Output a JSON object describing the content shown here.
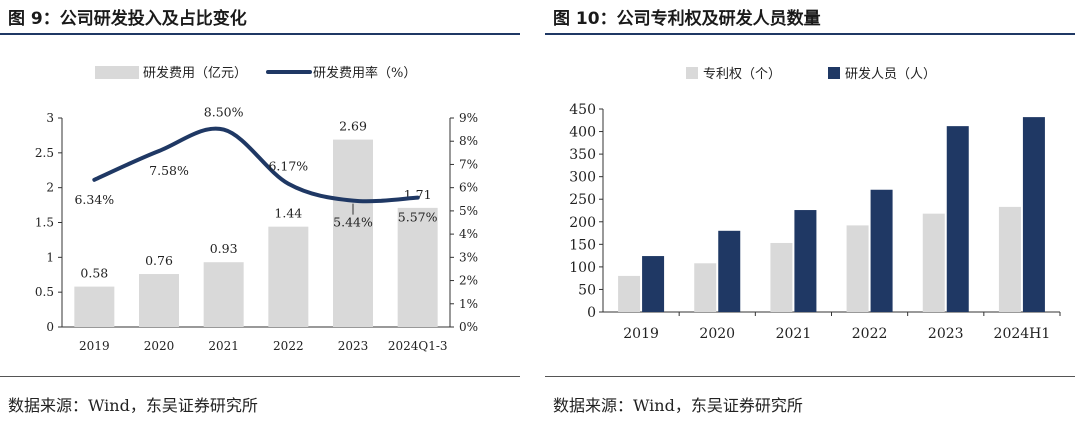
{
  "left_panel": {
    "title": "图 9：公司研发投入及占比变化",
    "source": "数据来源：Wind，东吴证券研究所"
  },
  "right_panel": {
    "title": "图 10：公司专利权及研发人员数量",
    "source": "数据来源：Wind，东吴证券研究所"
  },
  "chart_data": [
    {
      "type": "bar",
      "title": "公司研发投入及占比变化",
      "categories": [
        "2019",
        "2020",
        "2021",
        "2022",
        "2023",
        "2024Q1-3"
      ],
      "series": [
        {
          "name": "研发费用（亿元）",
          "kind": "bar",
          "axis": "left",
          "values": [
            0.58,
            0.76,
            0.93,
            1.44,
            2.69,
            1.71
          ],
          "labels": [
            "0.58",
            "0.76",
            "0.93",
            "1.44",
            "2.69",
            "1.71"
          ],
          "color": "#d9d9d9"
        },
        {
          "name": "研发费用率（%）",
          "kind": "line",
          "axis": "right",
          "values": [
            6.34,
            7.58,
            8.5,
            6.17,
            5.44,
            5.57
          ],
          "labels": [
            "6.34%",
            "7.58%",
            "8.50%",
            "6.17%",
            "5.44%",
            "5.57%"
          ],
          "color": "#1f3864"
        }
      ],
      "ylim_left": [
        0,
        3
      ],
      "yticks_left": [
        "0",
        "0.5",
        "1",
        "1.5",
        "2",
        "2.5",
        "3"
      ],
      "ylim_right": [
        0,
        9
      ],
      "yticks_right": [
        "0%",
        "1%",
        "2%",
        "3%",
        "4%",
        "5%",
        "6%",
        "7%",
        "8%",
        "9%"
      ],
      "legend": "top"
    },
    {
      "type": "bar",
      "title": "公司专利权及研发人员数量",
      "categories": [
        "2019",
        "2020",
        "2021",
        "2022",
        "2023",
        "2024H1"
      ],
      "series": [
        {
          "name": "专利权（个）",
          "values": [
            80,
            108,
            153,
            192,
            218,
            233
          ],
          "color": "#d9d9d9"
        },
        {
          "name": "研发人员（人）",
          "values": [
            124,
            180,
            226,
            271,
            412,
            432
          ],
          "color": "#1f3864"
        }
      ],
      "ylim": [
        0,
        450
      ],
      "yticks": [
        "0",
        "50",
        "100",
        "150",
        "200",
        "250",
        "300",
        "350",
        "400",
        "450"
      ],
      "legend": "top"
    }
  ]
}
